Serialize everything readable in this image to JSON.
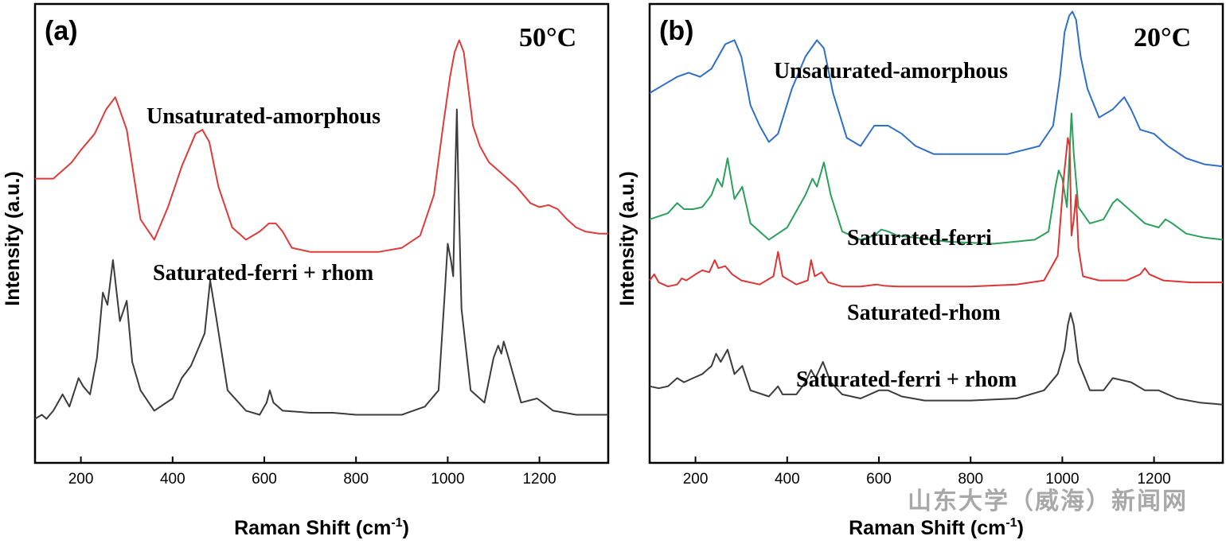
{
  "chart_data": [
    {
      "type": "line",
      "panel_tag": "(a)",
      "temperature": "50°C",
      "xlabel": "Raman Shift (cm",
      "xlabel_sup": "-1",
      "xlabel_end": ")",
      "ylabel": "Intensity (a.u.)",
      "xlim": [
        100,
        1350
      ],
      "ylim": [
        0,
        1
      ],
      "yticks_shown": false,
      "xticks": [
        200,
        400,
        600,
        800,
        1000,
        1200
      ],
      "xtick_labels": [
        "200",
        "400",
        "600",
        "800",
        "1000",
        "1200"
      ],
      "grid": false,
      "series": [
        {
          "name": "Unsaturated-amorphous",
          "color": "#e03b3b",
          "baseline": 0.42,
          "x": [
            100,
            140,
            180,
            200,
            230,
            255,
            275,
            300,
            330,
            360,
            390,
            420,
            450,
            465,
            480,
            500,
            530,
            560,
            590,
            610,
            625,
            640,
            660,
            700,
            750,
            800,
            850,
            900,
            940,
            970,
            990,
            1005,
            1015,
            1025,
            1035,
            1045,
            1055,
            1070,
            1090,
            1110,
            1130,
            1150,
            1180,
            1200,
            1220,
            1240,
            1260,
            1280,
            1300,
            1330,
            1350
          ],
          "y": [
            0.62,
            0.62,
            0.66,
            0.69,
            0.73,
            0.79,
            0.82,
            0.74,
            0.52,
            0.47,
            0.55,
            0.65,
            0.73,
            0.74,
            0.71,
            0.6,
            0.5,
            0.47,
            0.49,
            0.51,
            0.51,
            0.49,
            0.45,
            0.44,
            0.44,
            0.44,
            0.44,
            0.45,
            0.48,
            0.58,
            0.75,
            0.87,
            0.93,
            0.96,
            0.93,
            0.84,
            0.75,
            0.7,
            0.66,
            0.64,
            0.62,
            0.6,
            0.56,
            0.55,
            0.555,
            0.545,
            0.52,
            0.5,
            0.49,
            0.485,
            0.485
          ]
        },
        {
          "name": "Saturated-ferri + rhom",
          "color": "#3c3c3c",
          "baseline": 0.03,
          "x": [
            100,
            115,
            125,
            140,
            160,
            175,
            195,
            205,
            220,
            235,
            248,
            258,
            270,
            285,
            300,
            312,
            330,
            360,
            400,
            420,
            440,
            455,
            470,
            482,
            495,
            520,
            560,
            590,
            605,
            612,
            620,
            640,
            700,
            750,
            800,
            850,
            900,
            950,
            980,
            993,
            1000,
            1007,
            1012,
            1017,
            1020,
            1023,
            1030,
            1050,
            1080,
            1100,
            1110,
            1117,
            1122,
            1130,
            1160,
            1195,
            1230,
            1280,
            1350
          ],
          "y": [
            0.03,
            0.04,
            0.03,
            0.05,
            0.09,
            0.06,
            0.13,
            0.11,
            0.09,
            0.18,
            0.34,
            0.31,
            0.42,
            0.27,
            0.32,
            0.17,
            0.1,
            0.05,
            0.08,
            0.13,
            0.16,
            0.2,
            0.24,
            0.37,
            0.28,
            0.1,
            0.05,
            0.04,
            0.07,
            0.1,
            0.07,
            0.05,
            0.045,
            0.045,
            0.04,
            0.04,
            0.04,
            0.06,
            0.1,
            0.33,
            0.46,
            0.42,
            0.38,
            0.66,
            0.79,
            0.62,
            0.3,
            0.1,
            0.07,
            0.18,
            0.21,
            0.19,
            0.22,
            0.19,
            0.07,
            0.08,
            0.05,
            0.04,
            0.04
          ]
        }
      ]
    },
    {
      "type": "line",
      "panel_tag": "(b)",
      "temperature": "20°C",
      "xlabel": "Raman Shift (cm",
      "xlabel_sup": "-1",
      "xlabel_end": ")",
      "ylabel": "Intensity (a.u.)",
      "xlim": [
        100,
        1350
      ],
      "ylim": [
        0,
        1
      ],
      "yticks_shown": false,
      "xticks": [
        200,
        400,
        600,
        800,
        1000,
        1200
      ],
      "xtick_labels": [
        "200",
        "400",
        "600",
        "800",
        "1000",
        "1200"
      ],
      "grid": false,
      "series": [
        {
          "name": "Unsaturated-amorphous",
          "color": "#2e6fc8",
          "x": [
            100,
            130,
            160,
            185,
            210,
            235,
            265,
            285,
            300,
            320,
            340,
            360,
            380,
            410,
            440,
            465,
            480,
            500,
            530,
            560,
            590,
            620,
            650,
            680,
            720,
            800,
            880,
            950,
            980,
            995,
            1005,
            1015,
            1022,
            1030,
            1040,
            1055,
            1080,
            1110,
            1135,
            1150,
            1170,
            1200,
            1230,
            1270,
            1310,
            1350
          ],
          "y": [
            0.83,
            0.85,
            0.87,
            0.88,
            0.87,
            0.89,
            0.95,
            0.96,
            0.92,
            0.8,
            0.75,
            0.71,
            0.73,
            0.84,
            0.92,
            0.96,
            0.94,
            0.83,
            0.72,
            0.7,
            0.75,
            0.75,
            0.73,
            0.7,
            0.68,
            0.68,
            0.68,
            0.7,
            0.75,
            0.87,
            0.98,
            1.02,
            1.03,
            1.01,
            0.92,
            0.84,
            0.77,
            0.79,
            0.82,
            0.79,
            0.74,
            0.73,
            0.7,
            0.67,
            0.655,
            0.65
          ]
        },
        {
          "name": "Saturated-ferri",
          "color": "#2aa05c",
          "x": [
            100,
            140,
            160,
            175,
            195,
            215,
            235,
            248,
            258,
            270,
            285,
            302,
            320,
            360,
            400,
            440,
            455,
            465,
            480,
            495,
            520,
            560,
            590,
            605,
            620,
            640,
            680,
            750,
            850,
            940,
            970,
            985,
            992,
            1000,
            1010,
            1020,
            1025,
            1035,
            1060,
            1090,
            1110,
            1120,
            1130,
            1150,
            1180,
            1210,
            1225,
            1240,
            1270,
            1310,
            1350
          ],
          "y": [
            0.52,
            0.535,
            0.56,
            0.545,
            0.545,
            0.55,
            0.58,
            0.62,
            0.6,
            0.67,
            0.57,
            0.6,
            0.51,
            0.47,
            0.5,
            0.58,
            0.62,
            0.6,
            0.66,
            0.58,
            0.49,
            0.47,
            0.48,
            0.495,
            0.49,
            0.48,
            0.475,
            0.465,
            0.46,
            0.47,
            0.49,
            0.6,
            0.64,
            0.62,
            0.55,
            0.78,
            0.68,
            0.55,
            0.51,
            0.52,
            0.56,
            0.57,
            0.56,
            0.54,
            0.51,
            0.5,
            0.52,
            0.51,
            0.485,
            0.475,
            0.47
          ]
        },
        {
          "name": "Saturated-rhom",
          "color": "#dd3535",
          "x": [
            100,
            110,
            120,
            140,
            160,
            170,
            180,
            200,
            215,
            230,
            242,
            250,
            265,
            280,
            300,
            340,
            370,
            380,
            390,
            420,
            445,
            452,
            460,
            475,
            490,
            520,
            560,
            595,
            610,
            640,
            700,
            800,
            900,
            960,
            990,
            1003,
            1012,
            1016,
            1020,
            1025,
            1030,
            1035,
            1045,
            1080,
            1140,
            1170,
            1180,
            1190,
            1220,
            1280,
            1350
          ],
          "y": [
            0.37,
            0.385,
            0.365,
            0.355,
            0.36,
            0.375,
            0.37,
            0.385,
            0.395,
            0.39,
            0.42,
            0.4,
            0.405,
            0.385,
            0.37,
            0.36,
            0.38,
            0.44,
            0.38,
            0.36,
            0.37,
            0.42,
            0.38,
            0.39,
            0.365,
            0.355,
            0.355,
            0.36,
            0.357,
            0.355,
            0.355,
            0.355,
            0.36,
            0.37,
            0.43,
            0.62,
            0.72,
            0.7,
            0.48,
            0.52,
            0.58,
            0.45,
            0.38,
            0.37,
            0.37,
            0.385,
            0.4,
            0.385,
            0.37,
            0.365,
            0.365
          ]
        },
        {
          "name": "Saturated-ferri + rhom",
          "color": "#3c3c3c",
          "x": [
            100,
            120,
            140,
            160,
            175,
            195,
            215,
            235,
            245,
            255,
            270,
            285,
            302,
            320,
            360,
            380,
            390,
            420,
            440,
            452,
            462,
            478,
            495,
            520,
            560,
            600,
            620,
            650,
            700,
            800,
            900,
            960,
            990,
            1005,
            1012,
            1018,
            1025,
            1035,
            1060,
            1090,
            1110,
            1130,
            1150,
            1180,
            1210,
            1250,
            1300,
            1350
          ],
          "y": [
            0.11,
            0.105,
            0.11,
            0.13,
            0.12,
            0.13,
            0.14,
            0.16,
            0.19,
            0.17,
            0.2,
            0.14,
            0.16,
            0.1,
            0.085,
            0.11,
            0.09,
            0.09,
            0.12,
            0.15,
            0.13,
            0.17,
            0.12,
            0.09,
            0.08,
            0.1,
            0.1,
            0.085,
            0.075,
            0.075,
            0.08,
            0.1,
            0.14,
            0.2,
            0.26,
            0.29,
            0.26,
            0.17,
            0.1,
            0.1,
            0.13,
            0.125,
            0.12,
            0.1,
            0.1,
            0.08,
            0.07,
            0.065
          ]
        }
      ]
    }
  ],
  "labels": {
    "a_series_1": "Unsaturated-amorphous",
    "a_series_2": "Saturated-ferri + rhom",
    "b_series_1": "Unsaturated-amorphous",
    "b_series_2": "Saturated-ferri",
    "b_series_3": "Saturated-rhom",
    "b_series_4": "Saturated-ferri + rhom"
  },
  "watermark": "山东大学（威海）新闻网"
}
